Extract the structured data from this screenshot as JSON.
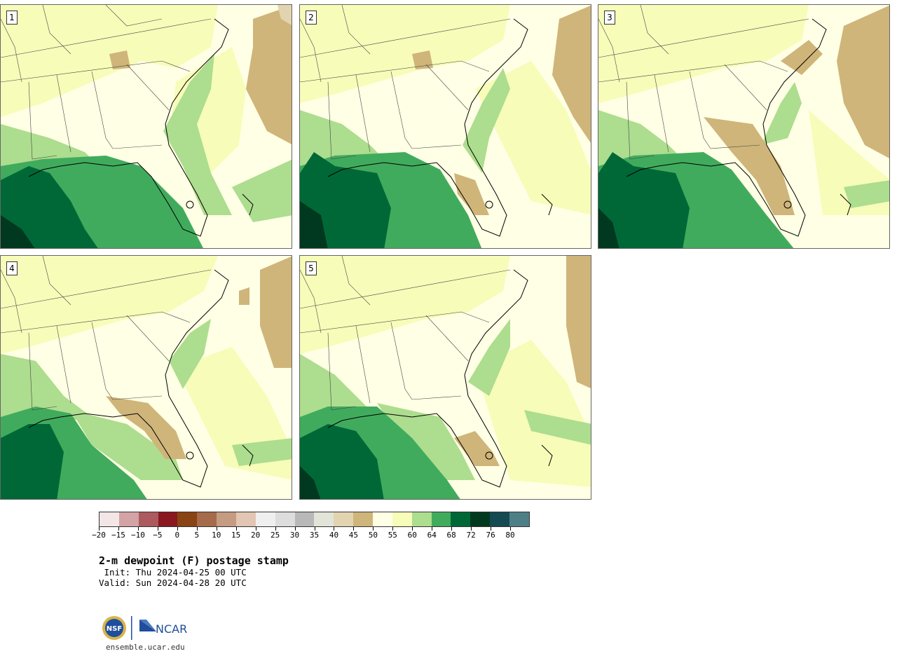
{
  "panels": [
    {
      "label": "1"
    },
    {
      "label": "2"
    },
    {
      "label": "3"
    },
    {
      "label": "4"
    },
    {
      "label": "5"
    }
  ],
  "colorbar": {
    "colors": [
      "#f3e6e6",
      "#d3a3a6",
      "#ad5a5f",
      "#8b1720",
      "#8a4312",
      "#a66b4a",
      "#c59b82",
      "#e2c5b2",
      "#efefef",
      "#dddddd",
      "#b8b8b8",
      "#e1e4d7",
      "#e2d4b0",
      "#cfb57a",
      "#ffffe5",
      "#f7fcb9",
      "#addd8e",
      "#41ab5d",
      "#006837",
      "#00391f",
      "#154a52",
      "#4e7f86"
    ],
    "tick_labels": [
      "−20",
      "−15",
      "−10",
      "−5",
      "0",
      "5",
      "10",
      "15",
      "20",
      "25",
      "30",
      "35",
      "40",
      "45",
      "50",
      "55",
      "60",
      "64",
      "68",
      "72",
      "76",
      "80"
    ]
  },
  "title": "2-m dewpoint (F) postage stamp",
  "init_line": " Init: Thu 2024-04-25 00 UTC",
  "valid_line": "Valid: Sun 2024-04-28 20 UTC",
  "logo": {
    "nsf": "NSF",
    "ncar": "NCAR"
  },
  "website": "ensemble.ucar.edu"
}
